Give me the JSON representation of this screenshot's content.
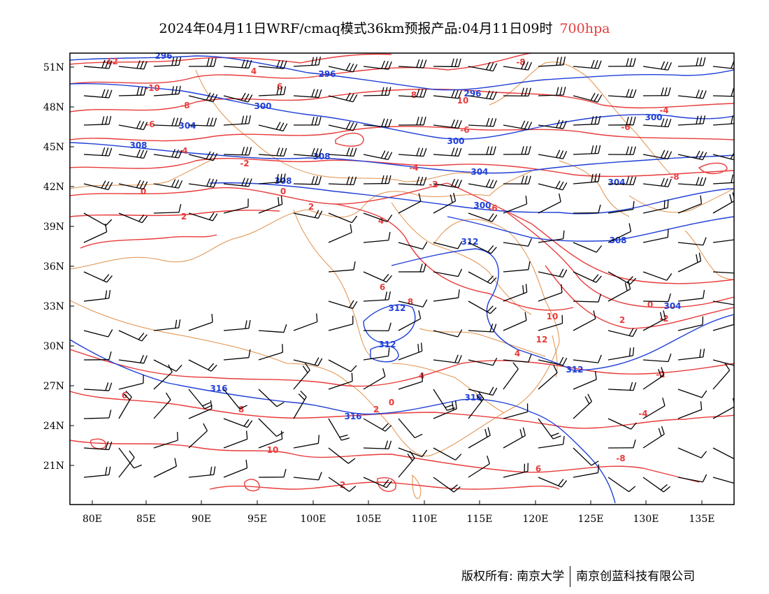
{
  "title": {
    "main": "2024年04月11日WRF/cmaq模式36km预报产品:04月11日09时",
    "level": "700hpa"
  },
  "map": {
    "lon_labels": [
      "80E",
      "85E",
      "90E",
      "95E",
      "100E",
      "105E",
      "110E",
      "115E",
      "120E",
      "125E",
      "130E",
      "135E"
    ],
    "lat_labels": [
      "51N",
      "48N",
      "45N",
      "42N",
      "39N",
      "36N",
      "33N",
      "30N",
      "27N",
      "24N",
      "21N"
    ],
    "colors": {
      "temperature_contour": "#e83b3b",
      "geopotential_contour": "#1f3fd6",
      "boundaries": "#e0904a",
      "wind_barbs": "#000000"
    },
    "temperature_labels": [
      "-12",
      "-10",
      "-8",
      "-6",
      "-4",
      "-2",
      "0",
      "2",
      "4",
      "6",
      "8",
      "10",
      "-8",
      "-6",
      "-4",
      "-2",
      "0",
      "2",
      "4",
      "6",
      "8",
      "10",
      "12",
      "4",
      "2",
      "0",
      "-2",
      "-4",
      "-6",
      "-8",
      "6",
      "8",
      "10",
      "2",
      "6",
      "-8",
      "-4",
      "-2",
      "4",
      "2",
      "0",
      "-6"
    ],
    "geopotential_labels": [
      "296",
      "296",
      "296",
      "300",
      "300",
      "300",
      "304",
      "304",
      "304",
      "308",
      "308",
      "308",
      "308",
      "312",
      "312",
      "312",
      "312",
      "316",
      "316",
      "316",
      "300",
      "304"
    ]
  },
  "footer": {
    "copyright": "版权所有: 南京大学",
    "company": "南京创蓝科技有限公司"
  }
}
